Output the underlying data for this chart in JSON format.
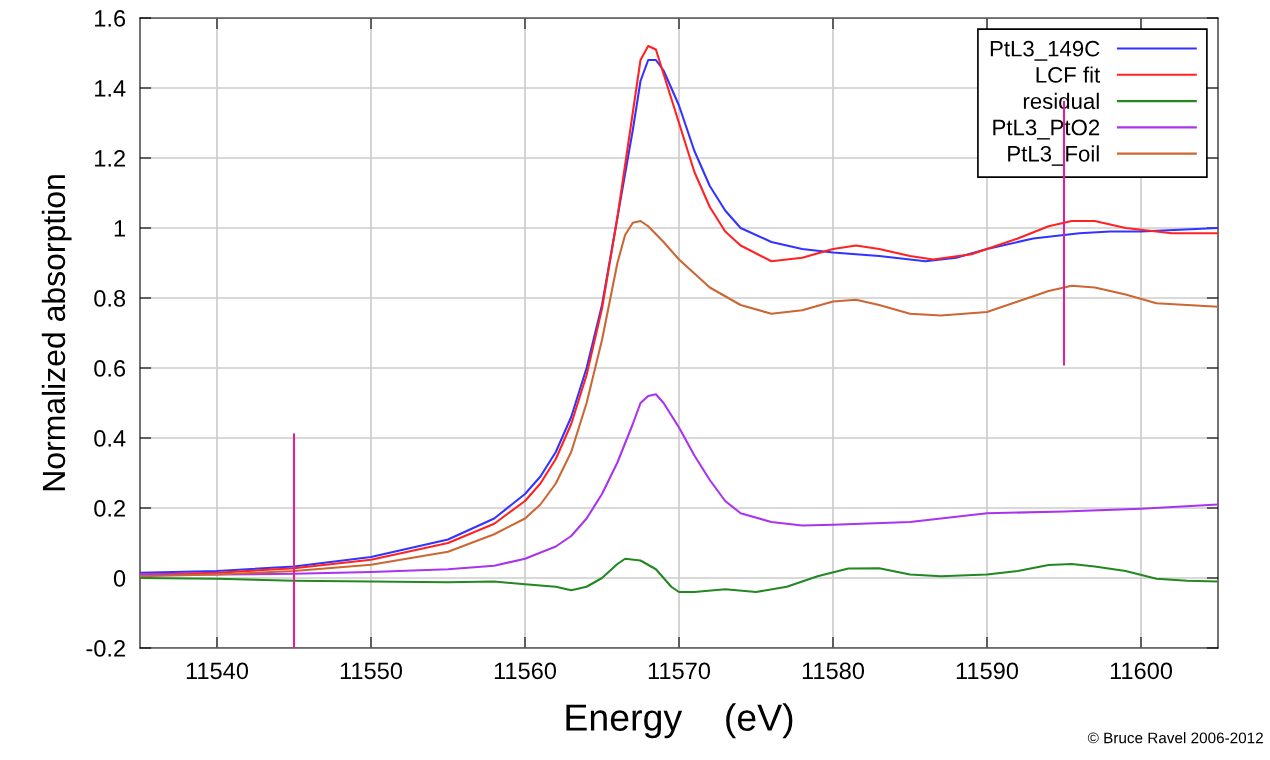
{
  "chart_data": {
    "type": "line",
    "xlabel": "Energy    (eV)",
    "ylabel": "Normalized absorption",
    "xlim": [
      11535,
      11605
    ],
    "ylim": [
      -0.2,
      1.6
    ],
    "xticks": [
      11540,
      11550,
      11560,
      11570,
      11580,
      11590,
      11600
    ],
    "yticks": [
      -0.2,
      0,
      0.2,
      0.4,
      0.6,
      0.8,
      1,
      1.2,
      1.4,
      1.6
    ],
    "grid": true,
    "legend": "top right",
    "marker": "none",
    "line_style": "solid",
    "annotations": [
      "© Bruce Ravel 2006-2012"
    ],
    "series": [
      {
        "name": "PtL3_149C",
        "color": "#3333ff",
        "x": [
          11535,
          11540,
          11545,
          11550,
          11555,
          11558,
          11560,
          11561,
          11562,
          11563,
          11564,
          11565,
          11566,
          11567,
          11567.5,
          11568,
          11568.5,
          11569,
          11570,
          11571,
          11572,
          11573,
          11574,
          11576,
          11578,
          11580,
          11583,
          11586,
          11588,
          11590,
          11593,
          11596,
          11598,
          11600,
          11605
        ],
        "values": [
          0.015,
          0.02,
          0.033,
          0.06,
          0.11,
          0.17,
          0.24,
          0.29,
          0.36,
          0.46,
          0.6,
          0.78,
          1.03,
          1.28,
          1.42,
          1.48,
          1.48,
          1.45,
          1.35,
          1.22,
          1.12,
          1.05,
          1.0,
          0.96,
          0.94,
          0.93,
          0.92,
          0.905,
          0.915,
          0.94,
          0.97,
          0.985,
          0.99,
          0.99,
          1.0
        ]
      },
      {
        "name": "LCF fit",
        "color": "#ff2222",
        "x": [
          11535,
          11540,
          11545,
          11550,
          11555,
          11558,
          11560,
          11561,
          11562,
          11563,
          11564,
          11565,
          11566,
          11567,
          11567.5,
          11568,
          11568.5,
          11569,
          11570,
          11571,
          11572,
          11573,
          11574,
          11576,
          11578,
          11580,
          11581.5,
          11583,
          11585,
          11586.5,
          11589,
          11592,
          11594,
          11595.5,
          11597,
          11599,
          11602,
          11605
        ],
        "values": [
          0.01,
          0.015,
          0.028,
          0.052,
          0.1,
          0.155,
          0.22,
          0.27,
          0.34,
          0.44,
          0.58,
          0.77,
          1.03,
          1.33,
          1.48,
          1.52,
          1.51,
          1.44,
          1.3,
          1.16,
          1.06,
          0.99,
          0.95,
          0.905,
          0.915,
          0.94,
          0.95,
          0.94,
          0.92,
          0.91,
          0.925,
          0.97,
          1.005,
          1.02,
          1.02,
          1.0,
          0.985,
          0.985
        ]
      },
      {
        "name": "residual",
        "color": "#228822",
        "x": [
          11535,
          11540,
          11545,
          11550,
          11555,
          11558,
          11560,
          11562,
          11563,
          11564,
          11565,
          11566,
          11566.5,
          11567.5,
          11568.5,
          11569.5,
          11570,
          11571,
          11573,
          11575,
          11577,
          11579,
          11581,
          11583,
          11585,
          11587,
          11590,
          11592,
          11594,
          11595.5,
          11597,
          11599,
          11601,
          11603,
          11605
        ],
        "values": [
          0.0,
          -0.002,
          -0.008,
          -0.01,
          -0.012,
          -0.01,
          -0.018,
          -0.025,
          -0.035,
          -0.025,
          0.0,
          0.04,
          0.055,
          0.05,
          0.025,
          -0.025,
          -0.04,
          -0.04,
          -0.032,
          -0.04,
          -0.025,
          0.005,
          0.027,
          0.028,
          0.01,
          0.005,
          0.01,
          0.02,
          0.037,
          0.04,
          0.033,
          0.02,
          -0.002,
          -0.008,
          -0.01
        ]
      },
      {
        "name": "PtL3_PtO2",
        "color": "#aa33ee",
        "x": [
          11535,
          11540,
          11545,
          11550,
          11555,
          11558,
          11560,
          11562,
          11563,
          11564,
          11565,
          11566,
          11567,
          11567.5,
          11568,
          11568.5,
          11569,
          11570,
          11571,
          11572,
          11573,
          11574,
          11576,
          11578,
          11580,
          11585,
          11588,
          11590,
          11595,
          11600,
          11605
        ],
        "values": [
          0.01,
          0.01,
          0.012,
          0.017,
          0.025,
          0.035,
          0.055,
          0.09,
          0.12,
          0.17,
          0.24,
          0.33,
          0.44,
          0.5,
          0.52,
          0.525,
          0.5,
          0.43,
          0.35,
          0.28,
          0.22,
          0.185,
          0.16,
          0.15,
          0.152,
          0.16,
          0.175,
          0.185,
          0.19,
          0.198,
          0.21
        ]
      },
      {
        "name": "PtL3_Foil",
        "color": "#cc6633",
        "x": [
          11535,
          11540,
          11545,
          11550,
          11555,
          11558,
          11560,
          11561,
          11562,
          11563,
          11564,
          11565,
          11566,
          11566.5,
          11567,
          11567.5,
          11568,
          11569,
          11570,
          11572,
          11574,
          11576,
          11578,
          11580,
          11581.5,
          11583,
          11585,
          11587,
          11590,
          11592,
          11594,
          11595.5,
          11597,
          11599,
          11601,
          11605
        ],
        "values": [
          0.005,
          0.01,
          0.02,
          0.038,
          0.075,
          0.125,
          0.17,
          0.21,
          0.27,
          0.36,
          0.5,
          0.68,
          0.9,
          0.98,
          1.015,
          1.02,
          1.005,
          0.96,
          0.91,
          0.83,
          0.78,
          0.755,
          0.765,
          0.79,
          0.795,
          0.78,
          0.755,
          0.75,
          0.76,
          0.79,
          0.82,
          0.835,
          0.83,
          0.81,
          0.785,
          0.775
        ]
      },
      {
        "color": "#dd2299",
        "x": [
          11545,
          11545
        ],
        "values": [
          -0.2,
          0.41
        ]
      },
      {
        "color": "#dd2299",
        "x": [
          11595,
          11595
        ],
        "values": [
          0.61,
          1.36
        ]
      }
    ]
  }
}
